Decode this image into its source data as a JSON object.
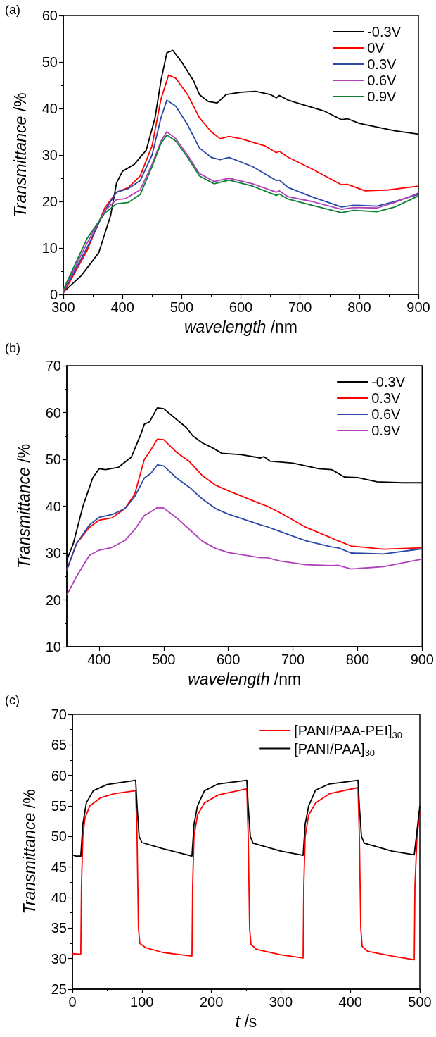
{
  "chart_data": [
    {
      "type": "line",
      "title": "(a)",
      "xlabel": "wavelength /nm",
      "ylabel": "Transmittance /%",
      "xlim": [
        300,
        900
      ],
      "xticks": [
        300,
        400,
        500,
        600,
        700,
        800,
        900
      ],
      "ylim": [
        0,
        60
      ],
      "yticks": [
        0,
        10,
        20,
        30,
        40,
        50,
        60
      ],
      "legend": "top right",
      "series": [
        {
          "name": "-0.3V",
          "color": "#000000",
          "x": [
            300,
            330,
            360,
            380,
            390,
            400,
            420,
            440,
            455,
            465,
            475,
            485,
            500,
            520,
            530,
            545,
            560,
            575,
            600,
            625,
            650,
            660,
            665,
            680,
            700,
            740,
            770,
            780,
            800,
            830,
            860,
            900
          ],
          "values": [
            0.5,
            4,
            9,
            17,
            24,
            26.5,
            28,
            31,
            38,
            46,
            52,
            52.5,
            50,
            46,
            43,
            41.5,
            41.2,
            43,
            43.5,
            43.7,
            43,
            42.3,
            42.8,
            41.8,
            41,
            39.5,
            37.6,
            37.8,
            36.8,
            36,
            35.2,
            34.5
          ]
        },
        {
          "name": "0V",
          "color": "#ff0000",
          "x": [
            300,
            340,
            370,
            390,
            410,
            430,
            450,
            465,
            478,
            490,
            510,
            530,
            550,
            565,
            580,
            600,
            640,
            660,
            665,
            680,
            720,
            770,
            780,
            810,
            850,
            900
          ],
          "values": [
            0.2,
            9.4,
            18.6,
            22,
            23,
            25.5,
            32,
            42,
            47.2,
            46.5,
            43,
            38,
            35,
            33.5,
            34,
            33.5,
            32,
            30.5,
            30.8,
            29.5,
            27,
            23.6,
            23.7,
            22.3,
            22.5,
            23.3
          ]
        },
        {
          "name": "0.3V",
          "color": "#2a48a8",
          "x": [
            300,
            340,
            370,
            390,
            410,
            430,
            450,
            465,
            475,
            490,
            510,
            530,
            550,
            565,
            580,
            620,
            660,
            665,
            680,
            720,
            770,
            790,
            830,
            860,
            900
          ],
          "values": [
            0.5,
            10,
            18,
            22,
            22.8,
            24.5,
            30,
            38,
            41.8,
            40.5,
            36.5,
            31.5,
            29.5,
            29,
            29.5,
            27.5,
            24.5,
            24.6,
            23,
            21,
            18.8,
            19.2,
            19,
            20,
            21.5
          ]
        },
        {
          "name": "0.6V",
          "color": "#b040b8",
          "x": [
            300,
            340,
            370,
            390,
            405,
            430,
            450,
            465,
            475,
            490,
            510,
            530,
            555,
            580,
            620,
            660,
            665,
            680,
            720,
            770,
            790,
            830,
            860,
            900
          ],
          "values": [
            0.7,
            11,
            18,
            20.4,
            20.6,
            22.5,
            28,
            33,
            35,
            33.5,
            30,
            26,
            24.3,
            25,
            23.8,
            22,
            22.3,
            21,
            20,
            18.3,
            18.7,
            18.6,
            19.8,
            21.8
          ]
        },
        {
          "name": "0.9V",
          "color": "#0a8030",
          "x": [
            300,
            340,
            370,
            390,
            410,
            430,
            450,
            465,
            475,
            490,
            510,
            530,
            555,
            580,
            620,
            660,
            665,
            680,
            720,
            770,
            790,
            830,
            860,
            900
          ],
          "values": [
            1,
            12,
            17.5,
            19.5,
            19.8,
            21.5,
            27.5,
            32.5,
            34.3,
            33,
            29.5,
            25.5,
            23.8,
            24.6,
            23.3,
            21.3,
            21.6,
            20.5,
            19.2,
            17.6,
            18.1,
            17.8,
            18.8,
            21.2
          ]
        }
      ]
    },
    {
      "type": "line",
      "title": "(b)",
      "xlabel": "wavelength /nm",
      "ylabel": "Transmittance /%",
      "xlim": [
        350,
        900
      ],
      "xticks": [
        400,
        500,
        600,
        700,
        800,
        900
      ],
      "ylim": [
        10,
        70
      ],
      "yticks": [
        10,
        20,
        30,
        40,
        50,
        60,
        70
      ],
      "legend": "top right",
      "series": [
        {
          "name": "-0.3V",
          "color": "#000000",
          "x": [
            350,
            360,
            375,
            390,
            400,
            410,
            430,
            450,
            465,
            470,
            478,
            490,
            500,
            520,
            535,
            545,
            560,
            575,
            590,
            620,
            650,
            655,
            665,
            700,
            740,
            760,
            780,
            800,
            830,
            870,
            900
          ],
          "values": [
            28.5,
            32,
            40,
            46,
            48,
            47.8,
            48.3,
            50.5,
            55.5,
            57.5,
            58,
            61,
            60.8,
            58.5,
            56.8,
            55,
            53.5,
            52.5,
            51.3,
            51,
            50.3,
            50.6,
            49.6,
            49.2,
            48,
            47.8,
            46.2,
            46.1,
            45.2,
            45,
            45
          ]
        },
        {
          "name": "0.3V",
          "color": "#ff0000",
          "x": [
            350,
            365,
            385,
            400,
            420,
            440,
            455,
            470,
            480,
            490,
            500,
            520,
            540,
            560,
            580,
            600,
            650,
            660,
            680,
            720,
            760,
            770,
            790,
            840,
            900
          ],
          "values": [
            26.5,
            32,
            35.5,
            37,
            37.5,
            39.5,
            42.5,
            50,
            52,
            54.3,
            54.2,
            51.5,
            49.5,
            46.5,
            44.5,
            43.3,
            40.5,
            40,
            38.6,
            35.5,
            33.2,
            32.6,
            31.5,
            30.8,
            31.1
          ]
        },
        {
          "name": "0.6V",
          "color": "#2a48a8",
          "x": [
            350,
            365,
            385,
            400,
            420,
            440,
            455,
            470,
            480,
            490,
            500,
            520,
            540,
            560,
            580,
            600,
            650,
            660,
            680,
            720,
            760,
            770,
            790,
            840,
            900
          ],
          "values": [
            26.3,
            32,
            36,
            37.6,
            38.2,
            39.5,
            42,
            46,
            47,
            48.8,
            48.6,
            46,
            44,
            41.5,
            39.5,
            38.3,
            36,
            35.6,
            34.6,
            32.6,
            31.3,
            31.1,
            30,
            29.8,
            30.9
          ]
        },
        {
          "name": "0.9V",
          "color": "#b040b8",
          "x": [
            350,
            365,
            385,
            400,
            420,
            440,
            455,
            470,
            480,
            490,
            500,
            520,
            540,
            560,
            580,
            600,
            650,
            660,
            680,
            720,
            760,
            770,
            790,
            840,
            900
          ],
          "values": [
            21,
            25,
            29.5,
            30.6,
            31.2,
            32.7,
            35,
            38,
            38.8,
            39.7,
            39.6,
            37.5,
            35,
            32.5,
            31,
            30.1,
            29,
            29,
            28.3,
            27.5,
            27.3,
            27.4,
            26.6,
            27.1,
            28.7
          ]
        }
      ]
    },
    {
      "type": "line",
      "title": "(c)",
      "xlabel": "t /s",
      "ylabel": "Transmittance /%",
      "xlim": [
        0,
        500
      ],
      "xticks": [
        0,
        100,
        200,
        300,
        400,
        500
      ],
      "ylim": [
        25,
        70
      ],
      "yticks": [
        25,
        30,
        35,
        40,
        45,
        50,
        55,
        60,
        65,
        70
      ],
      "legend": "top right",
      "series": [
        {
          "name": "[PANI/PAA-PEI]$_{30}$",
          "color": "#ff0000",
          "x": [
            0,
            12,
            13,
            15,
            18,
            25,
            40,
            60,
            91,
            93,
            95,
            97,
            105,
            130,
            172,
            173,
            175,
            180,
            190,
            210,
            251,
            253,
            255,
            257,
            265,
            300,
            332,
            333,
            335,
            340,
            350,
            370,
            411,
            413,
            415,
            417,
            425,
            460,
            492,
            493,
            496,
            500
          ],
          "values": [
            30.8,
            30.7,
            42,
            50,
            53,
            55,
            56.3,
            57,
            57.5,
            50,
            35,
            32.5,
            31.8,
            31,
            30.4,
            42,
            50,
            53.5,
            55.5,
            56.8,
            57.8,
            50,
            35,
            32.3,
            31.5,
            30.6,
            30.1,
            42,
            50,
            53.5,
            55.5,
            57,
            58,
            50,
            35,
            32,
            31.2,
            30.4,
            29.8,
            42,
            50,
            54
          ]
        },
        {
          "name": "[PANI/PAA]$_{30}$",
          "color": "#000000",
          "x": [
            0,
            5,
            12,
            15,
            20,
            30,
            50,
            91,
            93,
            96,
            100,
            130,
            172,
            175,
            180,
            190,
            210,
            251,
            253,
            256,
            260,
            300,
            332,
            335,
            340,
            350,
            370,
            411,
            413,
            416,
            420,
            460,
            492,
            495,
            500
          ],
          "values": [
            47,
            46.8,
            46.8,
            52,
            55.5,
            57.5,
            58.5,
            59.2,
            55,
            50,
            49,
            48,
            46.8,
            52,
            55,
            57.5,
            58.6,
            59.2,
            55,
            50,
            48.9,
            47.6,
            46.9,
            52,
            55,
            57.6,
            58.6,
            59.2,
            55,
            50,
            48.9,
            47.6,
            47,
            50,
            55
          ]
        }
      ]
    }
  ]
}
